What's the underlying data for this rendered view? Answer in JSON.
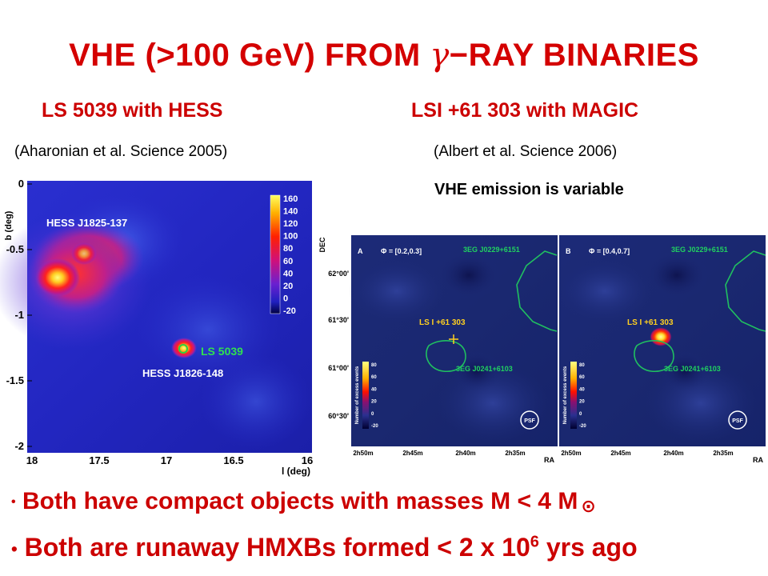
{
  "slide": {
    "title_left": "VHE (>100 GeV) FROM",
    "title_gamma": "γ",
    "title_right": "−RAY BINARIES"
  },
  "left": {
    "heading": "LS 5039 with HESS",
    "citation": "(Aharonian et al. Science 2005)",
    "map": {
      "ylabel": "b (deg)",
      "xlabel": "l (deg)",
      "yticks": [
        "0",
        "-0.5",
        "-1",
        "-1.5",
        "-2"
      ],
      "xticks": [
        "18",
        "17.5",
        "17",
        "16.5",
        "16"
      ],
      "colorbar_ticks": [
        "160",
        "140",
        "120",
        "100",
        "80",
        "60",
        "40",
        "20",
        "0",
        "-20"
      ],
      "label_j1825": "HESS J1825-137",
      "label_ls5039": "LS 5039",
      "label_j1826": "HESS J1826-148"
    }
  },
  "right": {
    "heading": "LSI +61 303 with MAGIC",
    "citation": "(Albert et al. Science 2006)",
    "note": "VHE emission is variable",
    "map": {
      "ylabel": "DEC",
      "xlabel": "RA",
      "yticks": [
        "62°00'",
        "61°30'",
        "61°00'",
        "60°30'"
      ],
      "colorbar_label": "Number of excess events",
      "colorbar_ticks": [
        "80",
        "60",
        "40",
        "20",
        "0",
        "-20"
      ],
      "psf": "PSF",
      "panel_a": {
        "letter": "A",
        "phase": "Φ = [0.2,0.3]",
        "src_top": "3EG J0229+6151",
        "src_bottom": "3EG J0241+6103",
        "src_center": "LS I +61 303",
        "xticks": [
          "2h50m",
          "2h45m",
          "2h40m",
          "2h35m"
        ]
      },
      "panel_b": {
        "letter": "B",
        "phase": "Φ = [0.4,0.7]",
        "src_top": "3EG J0229+6151",
        "src_bottom": "3EG J0241+6103",
        "src_center": "LS I +61 303",
        "xticks": [
          "2h50m",
          "2h45m",
          "2h40m",
          "2h35m"
        ]
      }
    }
  },
  "bullets": [
    {
      "text": "Both have compact objects with masses M < 4 M",
      "symbol": "⊙"
    },
    {
      "text": "Both are runaway HMXBs formed < 2 x 10",
      "exponent": "6",
      "tail": " yrs ago"
    }
  ]
}
